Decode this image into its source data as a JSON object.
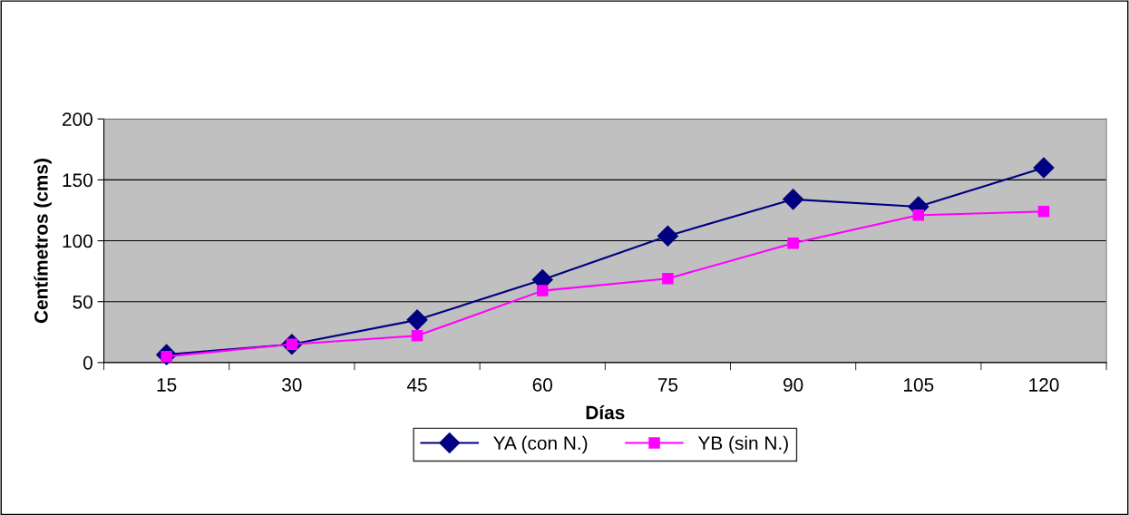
{
  "chart_data": {
    "type": "line",
    "xlabel": "Días",
    "ylabel": "Centímetros (cms)",
    "categories": [
      "15",
      "30",
      "45",
      "60",
      "75",
      "90",
      "105",
      "120"
    ],
    "series": [
      {
        "name": "YA (con N.)",
        "color": "#000080",
        "marker": "diamond",
        "values": [
          6.5,
          15,
          35,
          68,
          104,
          134,
          128,
          160
        ]
      },
      {
        "name": "YB (sin N.)",
        "color": "#ff00ff",
        "marker": "square",
        "values": [
          5,
          15,
          22,
          59,
          69,
          98,
          121,
          124
        ]
      }
    ],
    "ylim": [
      0,
      200
    ],
    "yticks": [
      0,
      50,
      100,
      150,
      200
    ],
    "grid": "y",
    "legend": "bottom",
    "line_style": "solid"
  }
}
